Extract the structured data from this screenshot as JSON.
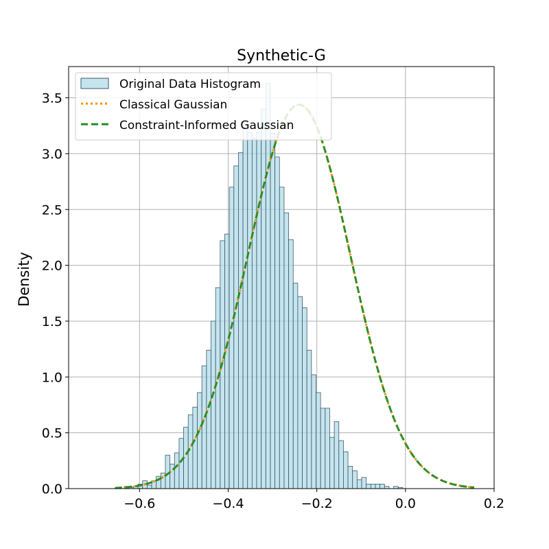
{
  "chart_data": {
    "type": "histogram",
    "title": "Synthetic-G",
    "xlabel": "",
    "ylabel": "Density",
    "xlim": [
      -0.76,
      0.2
    ],
    "ylim": [
      0,
      3.78
    ],
    "xticks": [
      -0.6,
      -0.4,
      -0.2,
      0.0,
      0.2
    ],
    "xtick_labels": [
      "−0.6",
      "−0.4",
      "−0.2",
      "0.0",
      "0.2"
    ],
    "yticks": [
      0.0,
      0.5,
      1.0,
      1.5,
      2.0,
      2.5,
      3.0,
      3.5
    ],
    "ytick_labels": [
      "0.0",
      "0.5",
      "1.0",
      "1.5",
      "2.0",
      "2.5",
      "3.0",
      "3.5"
    ],
    "grid": true,
    "legend_position": "top-left",
    "colors": {
      "histogram_fill": "#add8e6",
      "histogram_edge": "#3c5a6a",
      "classical": "#ff8c00",
      "constraint": "#228b22"
    },
    "legend": [
      "Original Data Histogram",
      "Classical Gaussian",
      "Constraint-Informed Gaussian"
    ],
    "histogram": {
      "name": "Original Data Histogram",
      "bin_start": -0.655,
      "bin_width": 0.0103,
      "densities": [
        0.01,
        0.0,
        0.02,
        0.01,
        0.02,
        0.04,
        0.07,
        0.03,
        0.07,
        0.11,
        0.14,
        0.3,
        0.22,
        0.32,
        0.45,
        0.55,
        0.66,
        0.73,
        0.86,
        1.1,
        1.24,
        1.5,
        1.8,
        2.22,
        2.28,
        2.7,
        2.89,
        3.01,
        3.28,
        3.19,
        3.14,
        3.19,
        3.4,
        3.63,
        3.18,
        2.97,
        2.7,
        2.47,
        2.23,
        1.84,
        1.72,
        1.62,
        1.24,
        1.02,
        0.86,
        0.72,
        0.72,
        0.46,
        0.6,
        0.43,
        0.33,
        0.2,
        0.16,
        0.08,
        0.1,
        0.04,
        0.04,
        0.04,
        0.04,
        0.02,
        0.0,
        0.02,
        0.01
      ],
      "mean": -0.24,
      "std": 0.116,
      "curve_range": [
        -0.655,
        0.155
      ]
    },
    "series": [
      {
        "name": "Classical Gaussian",
        "mean": -0.24,
        "std": 0.116,
        "style": "dotted"
      },
      {
        "name": "Constraint-Informed Gaussian",
        "mean": -0.24,
        "std": 0.116,
        "style": "dashed"
      }
    ]
  }
}
